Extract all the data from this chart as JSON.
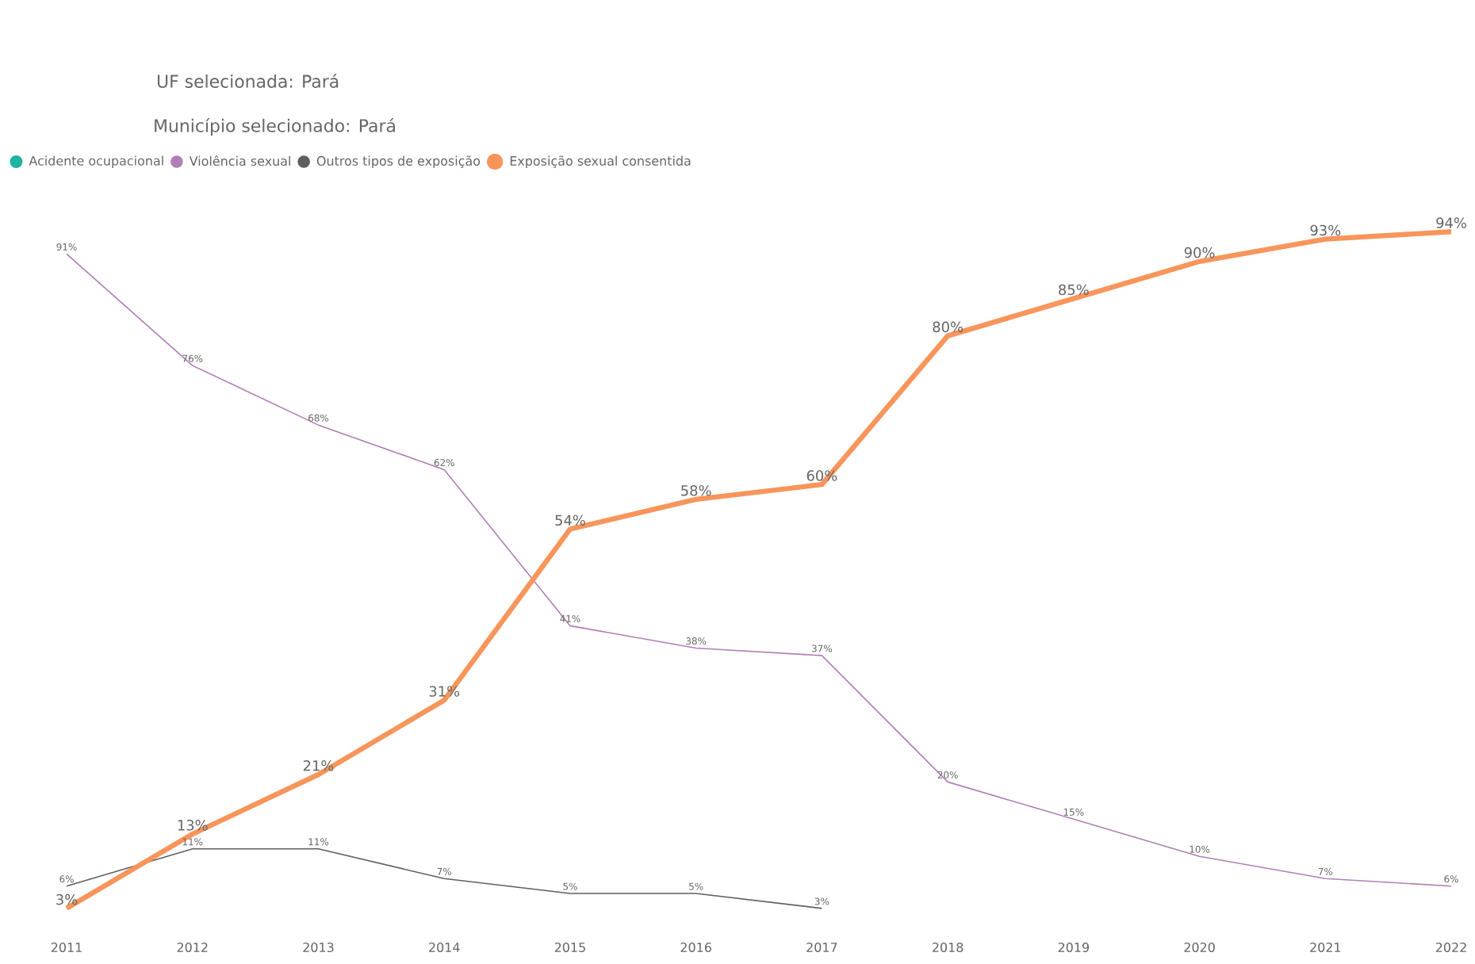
{
  "chart_data": {
    "type": "line",
    "title": "UF selecionada: Pará",
    "subtitle": "Município selecionado: Pará",
    "categories": [
      "2011",
      "2012",
      "2013",
      "2014",
      "2015",
      "2016",
      "2017",
      "2018",
      "2019",
      "2020",
      "2021",
      "2022"
    ],
    "tick_labels": "x",
    "grid": false,
    "legend": "top left",
    "marker": "none",
    "line_style": "solid",
    "series": [
      {
        "name": "Acidente ocupacional",
        "color": "#1fb3a0",
        "values": [
          null,
          null,
          null,
          null,
          null,
          null,
          null,
          null,
          null,
          null,
          null,
          null
        ]
      },
      {
        "name": "Violência sexual",
        "color": "#b07fb5",
        "values": [
          91,
          76,
          68,
          62,
          41,
          38,
          37,
          20,
          15,
          10,
          7,
          6
        ],
        "value_labels": [
          "91%",
          "76%",
          "68%",
          "62%",
          "41%",
          "38%",
          "37%",
          "20%",
          "15%",
          "10%",
          "7%",
          "6%"
        ]
      },
      {
        "name": "Outros tipos de exposição",
        "color": "#5f5f5f",
        "values": [
          6,
          11,
          11,
          7,
          5,
          5,
          3,
          null,
          null,
          null,
          null,
          null
        ],
        "value_labels": [
          "6%",
          "11%",
          "11%",
          "7%",
          "5%",
          "5%",
          "3%",
          null,
          null,
          null,
          null,
          null
        ]
      },
      {
        "name": "Exposição sexual consentida",
        "color": "#f7955b",
        "values": [
          3,
          13,
          21,
          31,
          54,
          58,
          60,
          80,
          85,
          90,
          93,
          94
        ],
        "value_labels": [
          "3%",
          "13%",
          "21%",
          "31%",
          "54%",
          "58%",
          "60%",
          "80%",
          "85%",
          "90%",
          "93%",
          "94%"
        ]
      }
    ]
  }
}
